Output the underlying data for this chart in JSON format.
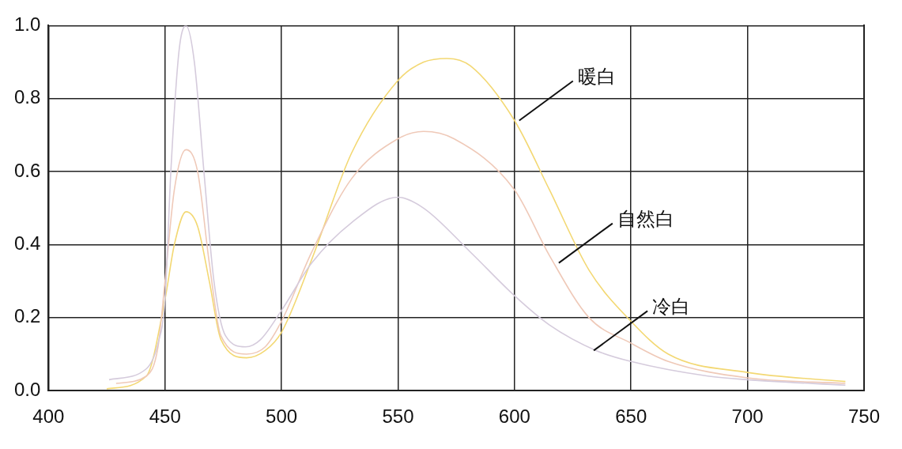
{
  "chart_data": {
    "type": "line",
    "x": [
      426,
      442,
      447,
      450,
      452.5,
      456,
      459,
      462.6,
      466.7,
      471,
      476,
      484.6,
      491,
      500,
      513,
      530,
      550,
      561,
      581,
      600,
      615,
      635,
      650,
      683,
      700,
      742
    ],
    "series": [
      {
        "color": "#d5cbdc",
        "values": [
          0.03,
          0.06,
          0.13,
          0.25,
          0.6,
          0.93,
          1.0,
          0.9,
          0.6,
          0.3,
          0.15,
          0.12,
          0.14,
          0.22,
          0.35,
          0.46,
          0.53,
          0.5,
          0.38,
          0.26,
          0.18,
          0.11,
          0.08,
          0.04,
          0.03,
          0.015
        ]
      },
      {
        "color": "#efc9b8",
        "x": [
          429,
          442,
          447,
          450,
          454,
          459,
          464,
          469,
          474,
          485,
          493,
          500,
          513,
          530,
          550,
          561,
          574,
          600,
          615,
          632,
          650,
          666,
          700,
          742
        ],
        "values": [
          0.02,
          0.04,
          0.12,
          0.3,
          0.55,
          0.66,
          0.6,
          0.35,
          0.15,
          0.1,
          0.12,
          0.19,
          0.38,
          0.58,
          0.69,
          0.71,
          0.69,
          0.55,
          0.37,
          0.2,
          0.13,
          0.08,
          0.035,
          0.02
        ]
      },
      {
        "color": "#f3d873",
        "x": [
          425,
          442,
          450,
          454,
          459,
          464,
          469,
          474,
          485,
          493,
          500,
          513,
          530,
          550,
          561,
          571,
          581,
          600,
          615,
          632,
          650,
          666,
          700,
          742
        ],
        "values": [
          0.005,
          0.04,
          0.25,
          0.4,
          0.49,
          0.45,
          0.3,
          0.14,
          0.09,
          0.11,
          0.16,
          0.36,
          0.65,
          0.85,
          0.9,
          0.91,
          0.89,
          0.74,
          0.55,
          0.33,
          0.19,
          0.1,
          0.05,
          0.025
        ]
      }
    ],
    "annotations": [
      {
        "text": "暖白",
        "x": 602,
        "y": 0.74
      },
      {
        "text": "自然白",
        "x": 619,
        "y": 0.35
      },
      {
        "text": "冷白",
        "x": 634,
        "y": 0.11
      }
    ],
    "xlim": [
      400,
      750
    ],
    "xticks": [
      400,
      450,
      500,
      550,
      600,
      650,
      700,
      750
    ],
    "ylim": [
      0,
      1
    ],
    "yticks": [
      {
        "value": 0,
        "label": "0.0"
      },
      0.2,
      0.4,
      0.6,
      0.8,
      {
        "value": 1,
        "label": "1.0"
      }
    ],
    "grid": true,
    "legend": false,
    "marker": "none",
    "line_style": "solid"
  }
}
